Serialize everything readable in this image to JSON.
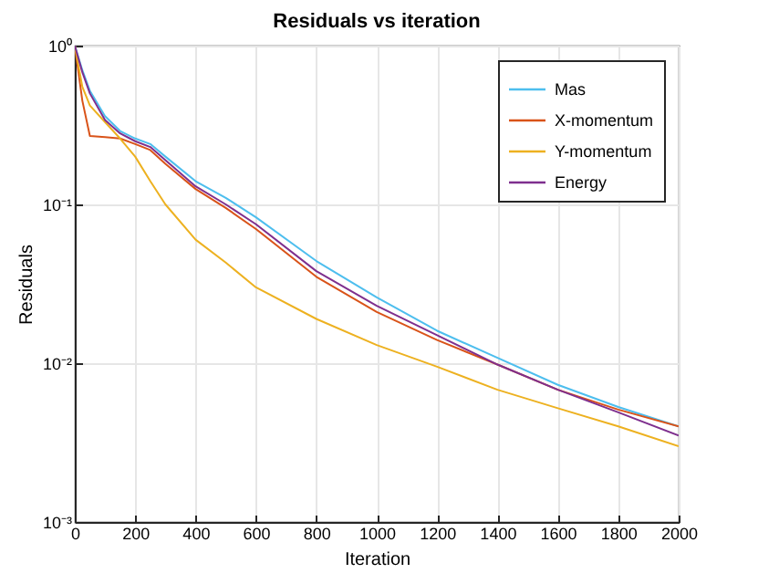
{
  "chart_data": {
    "type": "line",
    "title": "Residuals vs iteration",
    "xlabel": "Iteration",
    "ylabel": "Residuals",
    "x": [
      0,
      25,
      50,
      100,
      150,
      200,
      250,
      300,
      400,
      500,
      600,
      800,
      1000,
      1200,
      1400,
      1600,
      1800,
      2000
    ],
    "series": [
      {
        "name": "Mas",
        "color": "#4dbeee",
        "values": [
          1,
          0.7,
          0.52,
          0.36,
          0.29,
          0.26,
          0.24,
          0.2,
          0.14,
          0.11,
          0.083,
          0.044,
          0.026,
          0.016,
          0.0108,
          0.0073,
          0.0053,
          0.004
        ]
      },
      {
        "name": "X-momentum",
        "color": "#d95319",
        "values": [
          1,
          0.45,
          0.27,
          0.265,
          0.26,
          0.24,
          0.22,
          0.18,
          0.125,
          0.095,
          0.07,
          0.035,
          0.021,
          0.014,
          0.0098,
          0.0068,
          0.0051,
          0.004
        ]
      },
      {
        "name": "Y-momentum",
        "color": "#edb120",
        "values": [
          1,
          0.55,
          0.42,
          0.33,
          0.26,
          0.2,
          0.14,
          0.1,
          0.06,
          0.043,
          0.03,
          0.019,
          0.013,
          0.0095,
          0.0068,
          0.0052,
          0.004,
          0.003
        ]
      },
      {
        "name": "Energy",
        "color": "#7e2f8e",
        "values": [
          1,
          0.68,
          0.5,
          0.34,
          0.28,
          0.25,
          0.23,
          0.19,
          0.13,
          0.1,
          0.075,
          0.038,
          0.023,
          0.015,
          0.0098,
          0.0068,
          0.0049,
          0.0035
        ]
      }
    ],
    "xlim": [
      0,
      2000
    ],
    "xticks": [
      0,
      200,
      400,
      600,
      800,
      1000,
      1200,
      1400,
      1600,
      1800,
      2000
    ],
    "ylim": [
      0.001,
      1
    ],
    "yticks": [
      {
        "value": 0.001,
        "label": "10⁻³"
      },
      {
        "value": 0.01,
        "label": "10⁻²"
      },
      {
        "value": 0.1,
        "label": "10⁻¹"
      },
      {
        "value": 1,
        "label": "10⁰"
      }
    ],
    "log": "y",
    "grid": true,
    "legend": "top right"
  }
}
